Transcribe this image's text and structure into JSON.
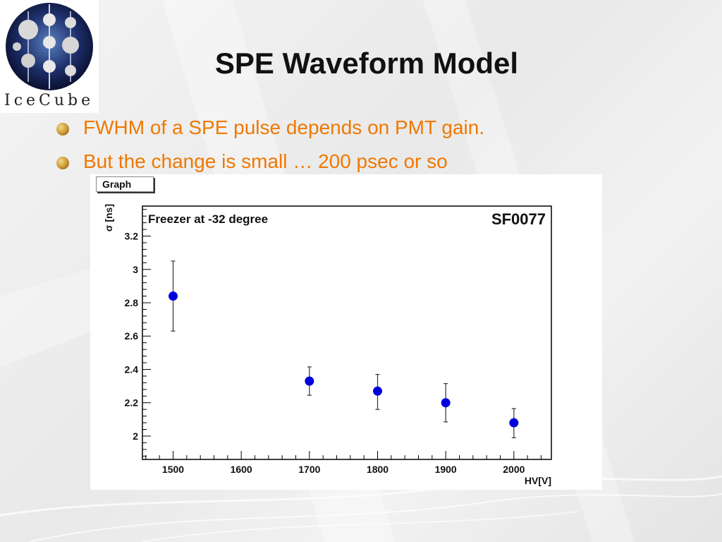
{
  "logo": {
    "text": "IceCube"
  },
  "slide": {
    "title": "SPE Waveform Model",
    "bullets": [
      "FWHM of a SPE pulse depends on PMT gain.",
      "But the change is small … 200 psec or so"
    ]
  },
  "colors": {
    "title": "#111111",
    "bullet_text": "#f07800",
    "marker": "#0000dd",
    "error_bar": "#333333"
  },
  "chart_data": {
    "type": "scatter",
    "button_label": "Graph",
    "title": "Freezer at -32 degree",
    "subtitle": "SF0077",
    "xlabel": "HV[V]",
    "ylabel": "σ [ns]",
    "xlim": [
      1455,
      2055
    ],
    "ylim": [
      1.86,
      3.38
    ],
    "xticks": [
      1500,
      1600,
      1700,
      1800,
      1900,
      2000
    ],
    "yticks": [
      2,
      2.2,
      2.4,
      2.6,
      2.8,
      3,
      3.2
    ],
    "yticks_labels": [
      "2",
      "2.2",
      "2.4",
      "2.6",
      "2.8",
      "3",
      "3.2"
    ],
    "grid": false,
    "series": [
      {
        "x": [
          1500,
          1700,
          1800,
          1900,
          2000
        ],
        "y": [
          2.84,
          2.33,
          2.27,
          2.2,
          2.08
        ],
        "err_low": [
          0.21,
          0.085,
          0.11,
          0.115,
          0.09
        ],
        "err_high": [
          0.21,
          0.085,
          0.1,
          0.115,
          0.085
        ]
      }
    ]
  }
}
